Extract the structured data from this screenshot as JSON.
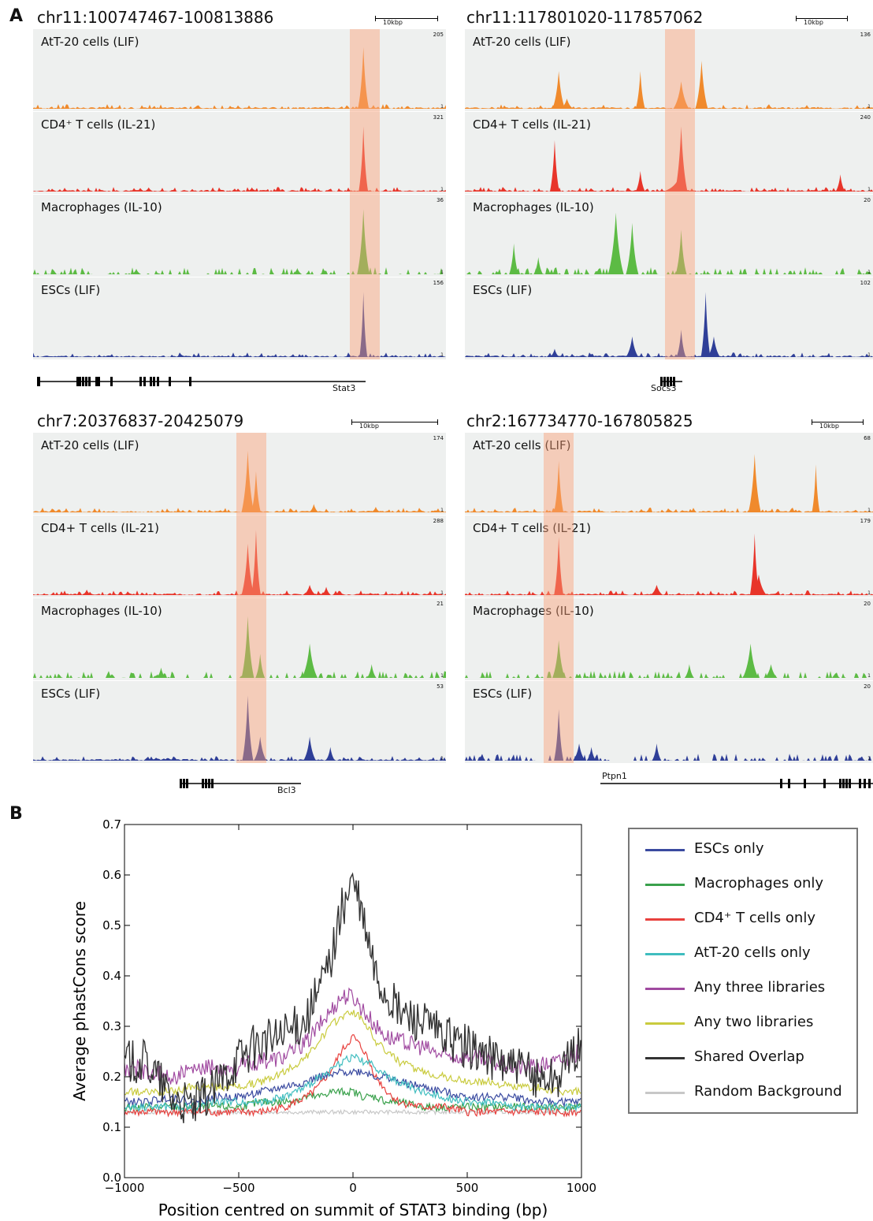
{
  "panel_a": {
    "letter": "A",
    "scale_label": "10kbp",
    "track_names": [
      "AtT-20 cells (LIF)",
      "CD4+ T cells (IL-21)",
      "Macrophages (IL-10)",
      "ESCs (LIF)"
    ],
    "track_colors": [
      "#f08a2c",
      "#e8352a",
      "#5cbb44",
      "#2f3f98"
    ],
    "loci": [
      {
        "coord": "chr11:100747467-100813886",
        "maxima": [
          "205",
          "321",
          "36",
          "156"
        ],
        "gene": "Stat3",
        "track_names": [
          "AtT-20 cells (LIF)",
          "CD4⁺ T cells (IL-21)",
          "Macrophages (IL-10)",
          "ESCs (LIF)"
        ]
      },
      {
        "coord": "chr11:117801020-117857062",
        "maxima": [
          "136",
          "240",
          "20",
          "102"
        ],
        "gene": "Socs3",
        "track_names": [
          "AtT-20 cells (LIF)",
          "CD4+ T cells (IL-21)",
          "Macrophages (IL-10)",
          "ESCs (LIF)"
        ]
      },
      {
        "coord": "chr7:20376837-20425079",
        "maxima": [
          "174",
          "288",
          "21",
          "53"
        ],
        "gene": "Bcl3",
        "track_names": [
          "AtT-20 cells (LIF)",
          "CD4+ T cells (IL-21)",
          "Macrophages (IL-10)",
          "ESCs (LIF)"
        ]
      },
      {
        "coord": "chr2:167734770-167805825",
        "maxima": [
          "68",
          "179",
          "20",
          "20"
        ],
        "gene": "Ptpn1",
        "track_names": [
          "AtT-20 cells (LIF)",
          "CD4+ T cells (IL-21)",
          "Macrophages (IL-10)",
          "ESCs (LIF)"
        ]
      }
    ],
    "track_min": "1"
  },
  "panel_b": {
    "letter": "B"
  },
  "chart_data": {
    "type": "line",
    "xlabel": "Position centred on summit of STAT3 binding (bp)",
    "ylabel": "Average phastCons score",
    "xlim": [
      -1000,
      1000
    ],
    "ylim": [
      0.0,
      0.7
    ],
    "xticks": [
      -1000,
      -500,
      0,
      500,
      1000
    ],
    "xtick_labels": [
      "−1000",
      "−500",
      "0",
      "500",
      "1000"
    ],
    "yticks": [
      0.0,
      0.1,
      0.2,
      0.3,
      0.4,
      0.5,
      0.6,
      0.7
    ],
    "ytick_labels": [
      "0.0",
      "0.1",
      "0.2",
      "0.3",
      "0.4",
      "0.5",
      "0.6",
      "0.7"
    ],
    "legend_position": "right",
    "x": [
      -1000,
      -900,
      -800,
      -700,
      -600,
      -500,
      -400,
      -300,
      -200,
      -150,
      -100,
      -50,
      0,
      50,
      100,
      150,
      200,
      300,
      400,
      500,
      600,
      700,
      800,
      900,
      1000
    ],
    "series": [
      {
        "name": "ESCs only",
        "color": "#3a4aa0",
        "values": [
          0.15,
          0.15,
          0.16,
          0.15,
          0.16,
          0.16,
          0.17,
          0.18,
          0.19,
          0.2,
          0.2,
          0.21,
          0.21,
          0.21,
          0.2,
          0.2,
          0.19,
          0.18,
          0.17,
          0.16,
          0.16,
          0.16,
          0.15,
          0.15,
          0.15
        ]
      },
      {
        "name": "Macrophages only",
        "color": "#3aa14c",
        "values": [
          0.14,
          0.14,
          0.14,
          0.14,
          0.14,
          0.14,
          0.15,
          0.15,
          0.16,
          0.16,
          0.17,
          0.17,
          0.17,
          0.16,
          0.16,
          0.15,
          0.15,
          0.14,
          0.14,
          0.14,
          0.14,
          0.14,
          0.14,
          0.14,
          0.14
        ]
      },
      {
        "name": "CD4⁺ T cells only",
        "color": "#e8413e",
        "values": [
          0.13,
          0.13,
          0.13,
          0.13,
          0.13,
          0.13,
          0.13,
          0.14,
          0.16,
          0.18,
          0.21,
          0.25,
          0.28,
          0.25,
          0.2,
          0.17,
          0.15,
          0.14,
          0.14,
          0.13,
          0.13,
          0.13,
          0.13,
          0.13,
          0.13
        ]
      },
      {
        "name": "AtT-20 cells only",
        "color": "#3fbdbf",
        "values": [
          0.14,
          0.14,
          0.14,
          0.14,
          0.15,
          0.15,
          0.15,
          0.16,
          0.18,
          0.2,
          0.21,
          0.23,
          0.24,
          0.23,
          0.22,
          0.2,
          0.19,
          0.17,
          0.16,
          0.15,
          0.15,
          0.14,
          0.14,
          0.14,
          0.14
        ]
      },
      {
        "name": "Any three libraries",
        "color": "#a04aa0",
        "values": [
          0.22,
          0.21,
          0.2,
          0.21,
          0.22,
          0.22,
          0.23,
          0.24,
          0.27,
          0.3,
          0.33,
          0.36,
          0.36,
          0.33,
          0.3,
          0.28,
          0.27,
          0.26,
          0.24,
          0.24,
          0.23,
          0.22,
          0.22,
          0.23,
          0.25
        ]
      },
      {
        "name": "Any two libraries",
        "color": "#c9cb3e",
        "values": [
          0.17,
          0.17,
          0.17,
          0.18,
          0.18,
          0.18,
          0.19,
          0.21,
          0.24,
          0.27,
          0.3,
          0.32,
          0.33,
          0.31,
          0.27,
          0.25,
          0.23,
          0.21,
          0.2,
          0.19,
          0.19,
          0.18,
          0.18,
          0.17,
          0.17
        ]
      },
      {
        "name": "Shared Overlap",
        "color": "#333333",
        "values": [
          0.23,
          0.23,
          0.16,
          0.14,
          0.18,
          0.24,
          0.27,
          0.28,
          0.32,
          0.37,
          0.43,
          0.53,
          0.59,
          0.5,
          0.4,
          0.36,
          0.33,
          0.31,
          0.28,
          0.26,
          0.24,
          0.22,
          0.2,
          0.2,
          0.27
        ]
      },
      {
        "name": "Random Background",
        "color": "#c8c8c8",
        "values": [
          0.13,
          0.13,
          0.13,
          0.13,
          0.13,
          0.13,
          0.13,
          0.13,
          0.13,
          0.13,
          0.13,
          0.13,
          0.13,
          0.13,
          0.13,
          0.13,
          0.13,
          0.13,
          0.13,
          0.13,
          0.13,
          0.13,
          0.13,
          0.13,
          0.13
        ]
      }
    ]
  }
}
